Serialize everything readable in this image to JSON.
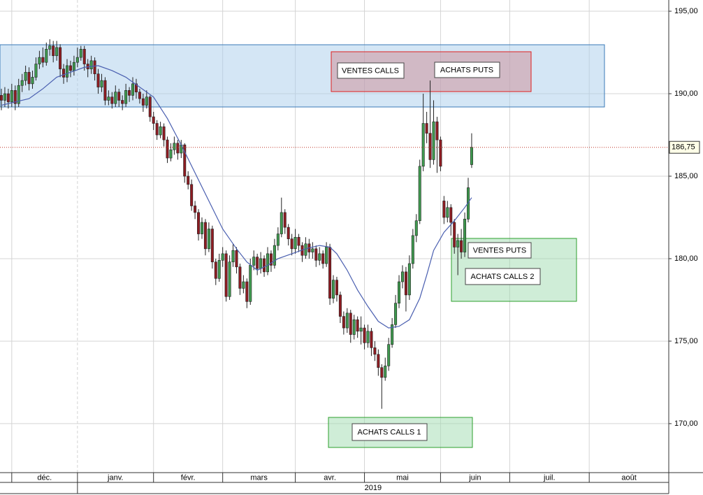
{
  "chart_data": {
    "type": "candlestick",
    "open": [
      189.9,
      189.6,
      190.0,
      189.5,
      190.2,
      189.4,
      190.5,
      190.8,
      191.3,
      190.6,
      191.0,
      191.8,
      192.2,
      191.9,
      192.7,
      192.9,
      192.3,
      192.8,
      191.5,
      191.0,
      191.7,
      191.4,
      191.9,
      192.2,
      192.7,
      191.8,
      191.5,
      192.0,
      191.2,
      190.4,
      190.8,
      189.6,
      189.8,
      189.4,
      190.1,
      189.6,
      189.4,
      190.2,
      189.9,
      190.6,
      190.1,
      189.7,
      189.3,
      189.8,
      188.6,
      188.2,
      187.5,
      188.0,
      187.2,
      186.1,
      186.6,
      187.0,
      186.4,
      186.9,
      185.0,
      184.5,
      183.2,
      182.8,
      181.5,
      182.2,
      180.6,
      181.8,
      179.8,
      178.8,
      179.9,
      180.3,
      177.7,
      179.8,
      180.5,
      179.5,
      178.2,
      178.6,
      177.4,
      179.6,
      180.1,
      179.4,
      180.0,
      179.2,
      180.3,
      179.6,
      180.8,
      181.5,
      182.8,
      181.9,
      181.2,
      180.6,
      181.3,
      180.8,
      180.2,
      180.9,
      180.4,
      180.6,
      179.9,
      180.3,
      179.7,
      180.7,
      177.6,
      178.7,
      177.8,
      176.5,
      175.8,
      176.7,
      175.4,
      176.3,
      175.6,
      175.8,
      174.9,
      175.6,
      174.6,
      174.2,
      173.4,
      172.8,
      173.5,
      174.8,
      176.0,
      177.3,
      178.6,
      179.2,
      177.8,
      179.7,
      181.4,
      182.3,
      185.6,
      188.2,
      187.6,
      186.0,
      188.3,
      187.2,
      183.5,
      182.5,
      183.1,
      182.2,
      180.7,
      181.1,
      180.4,
      182.4,
      185.7
    ],
    "high": [
      190.3,
      190.4,
      190.3,
      190.6,
      190.5,
      190.9,
      191.2,
      191.7,
      191.6,
      191.4,
      192.2,
      192.6,
      192.8,
      193.1,
      193.3,
      193.2,
      193.2,
      193.0,
      191.8,
      192.1,
      192.0,
      192.3,
      192.8,
      192.9,
      192.9,
      192.1,
      192.3,
      192.2,
      191.5,
      191.2,
      191.0,
      190.2,
      190.1,
      190.5,
      190.3,
      189.9,
      190.6,
      190.4,
      191.0,
      190.9,
      190.3,
      190.0,
      190.2,
      189.9,
      188.9,
      188.4,
      188.3,
      188.2,
      187.4,
      187.0,
      187.4,
      187.2,
      187.2,
      187.0,
      185.3,
      184.8,
      183.5,
      183.0,
      182.5,
      182.4,
      182.2,
      182.0,
      180.0,
      180.3,
      180.7,
      180.5,
      180.2,
      180.9,
      180.7,
      179.7,
      179.0,
      178.8,
      180.0,
      180.5,
      180.3,
      180.4,
      180.2,
      180.7,
      180.5,
      181.2,
      181.9,
      183.7,
      183.0,
      182.1,
      181.5,
      181.8,
      181.5,
      181.0,
      181.3,
      181.2,
      181.0,
      180.8,
      180.7,
      180.5,
      181.0,
      180.9,
      179.0,
      178.9,
      178.0,
      176.8,
      177.0,
      176.9,
      176.6,
      176.5,
      176.5,
      176.0,
      176.0,
      175.8,
      175.0,
      174.5,
      173.6,
      174.0,
      175.2,
      176.4,
      177.8,
      179.0,
      179.6,
      179.5,
      180.2,
      181.8,
      182.7,
      186.0,
      190.0,
      188.9,
      190.8,
      189.6,
      188.6,
      187.4,
      183.8,
      183.5,
      183.3,
      182.4,
      181.5,
      181.8,
      182.8,
      184.9,
      187.6
    ],
    "low": [
      189.0,
      189.2,
      189.1,
      189.2,
      189.0,
      189.2,
      190.1,
      190.5,
      190.2,
      190.3,
      190.8,
      191.5,
      191.6,
      191.7,
      192.3,
      191.9,
      192.0,
      191.0,
      190.6,
      190.7,
      191.0,
      191.1,
      191.6,
      192.0,
      191.4,
      191.0,
      191.2,
      190.8,
      190.0,
      190.1,
      189.3,
      189.3,
      189.1,
      189.2,
      189.2,
      189.0,
      189.2,
      189.5,
      189.6,
      189.7,
      189.4,
      188.9,
      189.1,
      188.3,
      187.8,
      187.2,
      187.3,
      186.8,
      185.8,
      185.9,
      186.3,
      186.0,
      186.1,
      184.6,
      184.2,
      182.9,
      182.4,
      181.1,
      181.2,
      180.2,
      180.4,
      179.4,
      178.4,
      178.6,
      179.5,
      177.4,
      177.5,
      179.5,
      179.1,
      177.8,
      177.9,
      177.0,
      177.2,
      179.3,
      179.0,
      179.1,
      178.9,
      179.0,
      179.2,
      179.4,
      180.5,
      181.3,
      181.5,
      180.8,
      180.2,
      180.3,
      180.4,
      179.8,
      180.0,
      180.0,
      180.0,
      179.5,
      179.6,
      179.4,
      179.5,
      177.2,
      177.3,
      177.4,
      176.1,
      175.4,
      175.5,
      174.9,
      175.1,
      175.2,
      174.8,
      174.5,
      174.6,
      174.1,
      173.8,
      172.9,
      170.9,
      172.6,
      173.2,
      174.6,
      175.8,
      177.0,
      178.2,
      176.8,
      177.5,
      179.4,
      181.0,
      182.1,
      185.3,
      187.0,
      185.5,
      185.7,
      185.2,
      185.3,
      182.1,
      182.2,
      181.4,
      180.3,
      179.0,
      180.0,
      180.1,
      182.2,
      185.5
    ],
    "close": [
      189.6,
      190.0,
      189.5,
      190.2,
      189.4,
      190.5,
      190.8,
      191.3,
      190.6,
      191.0,
      191.8,
      192.2,
      191.9,
      192.7,
      192.9,
      192.3,
      192.8,
      191.5,
      191.0,
      191.7,
      191.4,
      191.9,
      192.2,
      192.7,
      191.8,
      191.5,
      192.0,
      191.2,
      190.4,
      190.8,
      189.6,
      189.8,
      189.4,
      190.1,
      189.6,
      189.4,
      190.2,
      189.9,
      190.6,
      190.1,
      189.7,
      189.3,
      189.8,
      188.6,
      188.2,
      187.5,
      188.0,
      187.2,
      186.1,
      186.6,
      187.0,
      186.4,
      186.9,
      185.0,
      184.5,
      183.2,
      182.8,
      181.5,
      182.2,
      180.6,
      181.8,
      179.8,
      178.8,
      179.9,
      180.3,
      177.7,
      179.8,
      180.5,
      179.5,
      178.2,
      178.6,
      177.4,
      179.6,
      180.1,
      179.4,
      180.0,
      179.2,
      180.3,
      179.6,
      180.8,
      181.5,
      182.8,
      181.9,
      181.2,
      180.6,
      181.3,
      180.8,
      180.2,
      180.9,
      180.4,
      180.6,
      179.9,
      180.3,
      179.7,
      180.7,
      177.6,
      178.7,
      177.8,
      176.5,
      175.8,
      176.7,
      175.4,
      176.3,
      175.6,
      175.8,
      174.9,
      175.6,
      174.6,
      174.2,
      173.4,
      172.8,
      173.5,
      174.8,
      176.0,
      177.3,
      178.6,
      179.2,
      177.8,
      179.7,
      181.4,
      182.3,
      185.6,
      188.2,
      187.6,
      186.0,
      188.3,
      187.2,
      185.6,
      182.5,
      183.1,
      182.2,
      180.7,
      181.1,
      180.4,
      182.4,
      184.3,
      186.75
    ],
    "up_color": "#3f9a4f",
    "down_color": "#8e1c22",
    "moving_average": {
      "color": "#4a5fb0",
      "x": [
        0,
        8,
        12,
        16,
        20,
        24,
        28,
        32,
        36,
        40,
        44,
        48,
        52,
        56,
        60,
        64,
        68,
        71,
        74,
        77,
        80,
        84,
        88,
        92,
        95,
        97,
        100,
        103,
        106,
        109,
        112,
        115,
        118,
        121,
        123,
        125,
        128,
        131,
        134,
        136
      ],
      "values": [
        189.3,
        189.7,
        190.3,
        191.0,
        191.3,
        191.6,
        191.7,
        191.4,
        191.0,
        190.4,
        189.8,
        188.5,
        186.9,
        185.2,
        183.5,
        181.8,
        180.6,
        179.8,
        179.3,
        179.6,
        180.0,
        180.3,
        180.6,
        180.8,
        180.7,
        180.3,
        179.3,
        178.1,
        177.1,
        176.2,
        175.8,
        175.9,
        176.3,
        177.6,
        179.0,
        180.5,
        181.6,
        182.3,
        183.1,
        183.7
      ]
    },
    "last_price": {
      "value": 186.75,
      "label": "186,75"
    },
    "ylim": [
      167.03,
      195.68
    ],
    "yticks": [
      {
        "value": 170,
        "label": "170,00"
      },
      {
        "value": 175,
        "label": "175,00"
      },
      {
        "value": 180,
        "label": "180,00"
      },
      {
        "value": 185,
        "label": "185,00"
      },
      {
        "value": 190,
        "label": "190,00"
      },
      {
        "value": 195,
        "label": "195,00"
      }
    ],
    "xlim": [
      -0.4,
      193
    ],
    "xticks": [
      {
        "value": 3,
        "label": "déc."
      },
      {
        "value": 22,
        "label": "janv."
      },
      {
        "value": 44,
        "label": "févr."
      },
      {
        "value": 64,
        "label": "mars"
      },
      {
        "value": 85,
        "label": "avr."
      },
      {
        "value": 105,
        "label": "mai"
      },
      {
        "value": 127,
        "label": "juin"
      },
      {
        "value": 147,
        "label": "juil."
      },
      {
        "value": 170,
        "label": "août"
      }
    ],
    "year_label": "2019",
    "annotations": [
      "VENTES CALLS",
      "ACHATS PUTS",
      "VENTES PUTS",
      "ACHATS CALLS 2",
      "ACHATS CALLS 1"
    ]
  }
}
